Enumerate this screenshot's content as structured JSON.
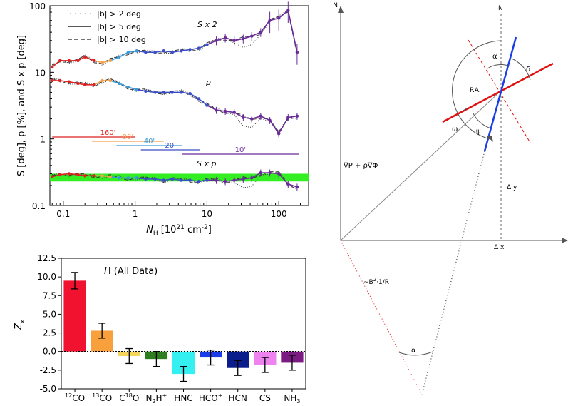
{
  "chart_data": [
    {
      "type": "line",
      "xlabel_main": "N",
      "xlabel_sub": "H",
      "xlabel_unit": " [10",
      "xlabel_exp": "21",
      "xlabel_tail": " cm",
      "xlabel_tail_exp": "-2",
      "xlabel_close": "]",
      "ylabel": "S [deg], p [%], and S x p [deg]",
      "xscale": "log",
      "yscale": "log",
      "xlim": [
        0.065,
        260
      ],
      "ylim": [
        0.1,
        100
      ],
      "xticks": [
        "0.1",
        "1",
        "10",
        "100"
      ],
      "yticks": [
        "0.1",
        "1",
        "10",
        "100"
      ],
      "legend": {
        "placement": "top-left",
        "entries": [
          {
            "label": "|b| > 2 deg",
            "style": "dotted"
          },
          {
            "label": "|b| > 5 deg",
            "style": "solid"
          },
          {
            "label": "|b| > 10 deg",
            "style": "dashed"
          }
        ]
      },
      "annotations": {
        "S": "S x 2",
        "p": "p",
        "Sp": "S x p"
      },
      "colors": [
        "#dd2222",
        "#f4a24a",
        "#3a9ad9",
        "#3b4ec6",
        "#6a2a9a"
      ],
      "resolution_bars": [
        {
          "label": "160'",
          "xmin": 0.07,
          "xmax": 1.0,
          "color": "#dd2222"
        },
        {
          "label": "80'",
          "xmin": 0.25,
          "xmax": 2.5,
          "color": "#f4a24a"
        },
        {
          "label": "40'",
          "xmin": 0.55,
          "xmax": 4.5,
          "color": "#3a9ad9"
        },
        {
          "label": "20'",
          "xmin": 1.2,
          "xmax": 8.0,
          "color": "#3b4ec6"
        },
        {
          "label": "10'",
          "xmin": 4.5,
          "xmax": 190,
          "color": "#6a2a9a"
        }
      ],
      "green_band": {
        "ymin": 0.23,
        "ymax": 0.3,
        "color": "#33ee22"
      },
      "series": [
        {
          "x": [
            0.07,
            0.09,
            0.12,
            0.16,
            0.2,
            0.27,
            0.35,
            0.45,
            0.6,
            0.8,
            1.05,
            1.4,
            1.9,
            2.5,
            3.3,
            4.4,
            5.8,
            7.7,
            10,
            13.5,
            18,
            24,
            32,
            42,
            56,
            75,
            100,
            135,
            180
          ],
          "S": [
            12,
            15,
            15,
            15,
            17,
            15,
            14,
            15,
            17,
            20,
            21,
            20,
            20,
            21,
            20,
            21,
            22,
            23,
            26,
            30,
            33,
            30,
            32,
            35,
            40,
            60,
            65,
            85,
            20
          ],
          "p": [
            7.5,
            7.5,
            7.2,
            6.8,
            6.5,
            6.5,
            7.5,
            7.5,
            6.8,
            6.0,
            5.5,
            5.2,
            5.0,
            5.0,
            5.0,
            5.0,
            4.8,
            4.0,
            3.2,
            2.7,
            2.6,
            2.5,
            2.1,
            2.0,
            2.2,
            1.9,
            1.2,
            2.1,
            2.2
          ],
          "Sp": [
            0.27,
            0.29,
            0.3,
            0.29,
            0.28,
            0.28,
            0.28,
            0.27,
            0.26,
            0.26,
            0.26,
            0.25,
            0.25,
            0.24,
            0.25,
            0.24,
            0.24,
            0.23,
            0.24,
            0.24,
            0.23,
            0.24,
            0.25,
            0.26,
            0.31,
            0.31,
            0.3,
            0.21,
            0.19
          ]
        }
      ]
    },
    {
      "type": "bar",
      "title": "I (All Data)",
      "ylabel": "Z",
      "ylabel_sub": "x",
      "ylim": [
        -5.0,
        12.5
      ],
      "yticks": [
        "12.5",
        "10.0",
        "7.5",
        "5.0",
        "2.5",
        "0.0",
        "-2.5",
        "-5.0"
      ],
      "categories": [
        {
          "base": "",
          "sup": "12",
          "main": "CO",
          "sub": "",
          "tail": ""
        },
        {
          "base": "",
          "sup": "13",
          "main": "CO",
          "sub": "",
          "tail": ""
        },
        {
          "base": "C",
          "sup": "18",
          "main": "O",
          "sub": "",
          "tail": ""
        },
        {
          "base": "",
          "sup": "",
          "main": "N",
          "sub": "2",
          "tail": "H",
          "tailsup": "+"
        },
        {
          "base": "",
          "sup": "",
          "main": "HNC",
          "sub": "",
          "tail": ""
        },
        {
          "base": "",
          "sup": "",
          "main": "HCO",
          "sub": "",
          "tail": "",
          "tailsup": "+"
        },
        {
          "base": "",
          "sup": "",
          "main": "HCN",
          "sub": "",
          "tail": ""
        },
        {
          "base": "",
          "sup": "",
          "main": "CS",
          "sub": "",
          "tail": ""
        },
        {
          "base": "",
          "sup": "",
          "main": "NH",
          "sub": "3",
          "tail": ""
        }
      ],
      "values": [
        9.5,
        2.8,
        -0.6,
        -1.0,
        -3.0,
        -0.8,
        -2.2,
        -1.8,
        -1.5
      ],
      "errors": [
        1.1,
        1.0,
        1.0,
        1.0,
        1.0,
        1.0,
        1.0,
        1.0,
        1.0
      ],
      "colors": [
        "#f0122e",
        "#f8a13c",
        "#f5d65a",
        "#2e7d1f",
        "#34f0f0",
        "#1a3de8",
        "#0b1d8a",
        "#ee82ee",
        "#7a1a82"
      ]
    }
  ],
  "diagram": {
    "labels": {
      "N_axis": "N",
      "N_line": "N",
      "alpha_top": "α",
      "delta": "δ",
      "pa": "P.A.",
      "omega": "ω",
      "psi": "ψ",
      "gradient": "∇P  +  ρ∇Φ",
      "dy": "Δ y",
      "dx": "Δ x",
      "curvature": "~B",
      "curvature_exp": "2",
      "curvature_tail": "·1/R",
      "alpha_bottom": "α"
    },
    "colors": {
      "field_line": "#e01010",
      "polarization": "#1a3de8",
      "axes": "#555555"
    }
  }
}
